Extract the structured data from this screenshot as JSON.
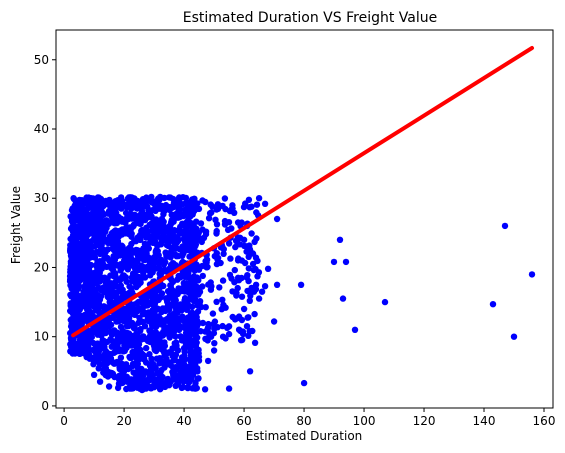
{
  "chart_data": {
    "type": "scatter",
    "title": "Estimated Duration VS Freight Value",
    "xlabel": "Estimated Duration",
    "ylabel": "Freight Value",
    "xlim": [
      -2.7,
      163
    ],
    "ylim": [
      -0.3,
      54.3
    ],
    "xticks": [
      0,
      20,
      40,
      60,
      80,
      100,
      120,
      140,
      160
    ],
    "yticks": [
      0,
      10,
      20,
      30,
      40,
      50
    ],
    "grid": false,
    "legend": "none",
    "colors": {
      "points": "#0000ff",
      "fit_line": "#ff0000"
    },
    "series": [
      {
        "type": "scatter",
        "marker": "circle",
        "dense_cluster": {
          "x_range": [
            2,
            45
          ],
          "y_range": [
            7.5,
            30.2
          ],
          "note_of_shape": "dense bulk of points"
        },
        "scatter_region": {
          "x_range": [
            40,
            65
          ],
          "y_range": [
            9,
            30
          ]
        },
        "points": [
          [
            26,
            2.3
          ],
          [
            47,
            2.4
          ],
          [
            55,
            2.5
          ],
          [
            18,
            2.6
          ],
          [
            62,
            5.0
          ],
          [
            64,
            17.5
          ],
          [
            65,
            15.5
          ],
          [
            66,
            16.5
          ],
          [
            67,
            17.3
          ],
          [
            68,
            19.8
          ],
          [
            70,
            12.2
          ],
          [
            71,
            17.5
          ],
          [
            71,
            27.0
          ],
          [
            67,
            29.2
          ],
          [
            65,
            30.0
          ],
          [
            58,
            26.5
          ],
          [
            62,
            22.0
          ],
          [
            63,
            20.5
          ],
          [
            60,
            14.0
          ],
          [
            59,
            9.5
          ],
          [
            80,
            3.3
          ],
          [
            79,
            17.5
          ],
          [
            90,
            20.8
          ],
          [
            92,
            24.0
          ],
          [
            93,
            15.5
          ],
          [
            94,
            20.8
          ],
          [
            97,
            11.0
          ],
          [
            107,
            15.0
          ],
          [
            143,
            14.7
          ],
          [
            147,
            26.0
          ],
          [
            150,
            10.0
          ],
          [
            156,
            19.0
          ],
          [
            7,
            26.5
          ],
          [
            8,
            29.0
          ],
          [
            9,
            30.0
          ],
          [
            5,
            21.0
          ],
          [
            4,
            24.5
          ],
          [
            3,
            18.0
          ],
          [
            10,
            4.5
          ],
          [
            12,
            3.5
          ],
          [
            15,
            2.8
          ],
          [
            22,
            2.5
          ],
          [
            30,
            2.7
          ],
          [
            35,
            3.0
          ],
          [
            40,
            4.0
          ],
          [
            44,
            5.5
          ],
          [
            48,
            6.5
          ],
          [
            50,
            8.0
          ],
          [
            53,
            10.0
          ],
          [
            55,
            11.5
          ],
          [
            57,
            12.5
          ],
          [
            58,
            18.5
          ],
          [
            60,
            24.0
          ],
          [
            61,
            26.0
          ],
          [
            56,
            28.5
          ]
        ]
      },
      {
        "type": "line",
        "points": [
          [
            3,
            10.2
          ],
          [
            156,
            51.7
          ]
        ]
      }
    ]
  }
}
